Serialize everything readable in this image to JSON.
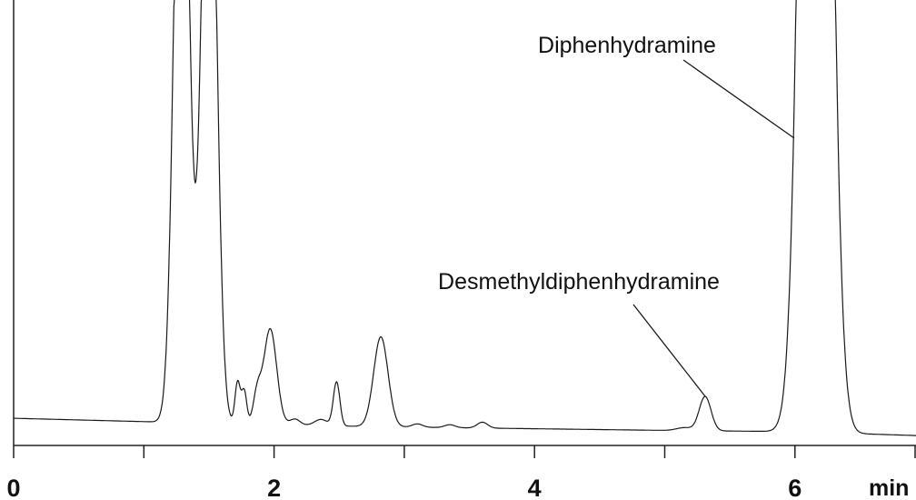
{
  "chart_data": {
    "type": "line",
    "title": "",
    "xlabel": "min",
    "ylabel": "",
    "xlim": [
      0,
      7
    ],
    "ylim": [
      0,
      100
    ],
    "grid": false,
    "x_ticks": [
      0,
      1,
      2,
      3,
      4,
      5,
      6,
      7
    ],
    "x_tick_labels": [
      {
        "value": 0,
        "text": "0"
      },
      {
        "value": 2,
        "text": "2"
      },
      {
        "value": 4,
        "text": "4"
      },
      {
        "value": 6,
        "text": "6"
      }
    ],
    "baseline": [
      [
        0,
        6.5
      ],
      [
        1.0,
        5.7
      ],
      [
        2.0,
        4.9
      ],
      [
        3.0,
        4.4
      ],
      [
        4.0,
        4.0
      ],
      [
        5.0,
        3.6
      ],
      [
        6.0,
        3.3
      ],
      [
        7.0,
        2.3
      ]
    ],
    "peaks": [
      {
        "rt": 1.29,
        "height": 180,
        "width": 0.055
      },
      {
        "rt": 1.5,
        "height": 175,
        "width": 0.055
      },
      {
        "rt": 1.72,
        "height": 10,
        "width": 0.02
      },
      {
        "rt": 1.77,
        "height": 8,
        "width": 0.02
      },
      {
        "rt": 1.87,
        "height": 7,
        "width": 0.03
      },
      {
        "rt": 1.97,
        "height": 23,
        "width": 0.05
      },
      {
        "rt": 2.16,
        "height": 1.5,
        "width": 0.04
      },
      {
        "rt": 2.36,
        "height": 1.5,
        "width": 0.05
      },
      {
        "rt": 2.48,
        "height": 10.5,
        "width": 0.025
      },
      {
        "rt": 2.82,
        "height": 21.5,
        "width": 0.055
      },
      {
        "rt": 3.1,
        "height": 0.8,
        "width": 0.04
      },
      {
        "rt": 3.35,
        "height": 0.7,
        "width": 0.04
      },
      {
        "rt": 3.6,
        "height": 1.4,
        "width": 0.04
      },
      {
        "rt": 5.15,
        "height": 0.7,
        "width": 0.06
      },
      {
        "rt": 5.31,
        "height": 8.2,
        "width": 0.045
      },
      {
        "rt": 6.16,
        "height": 430,
        "width": 0.09
      }
    ],
    "annotations": [
      {
        "text": "Diphenhydramine",
        "rt": 6.16
      },
      {
        "text": "Desmethyldiphenhydramine",
        "rt": 5.31
      }
    ]
  }
}
